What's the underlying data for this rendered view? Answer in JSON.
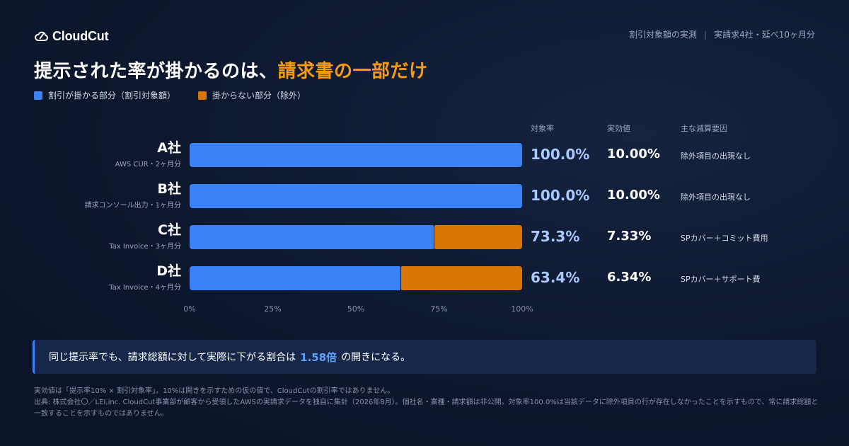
{
  "brand": {
    "name": "CloudCut"
  },
  "header": {
    "meta_left": "割引対象額の実測",
    "meta_sep": "|",
    "meta_right": "実請求4社・延べ10ヶ月分"
  },
  "title": {
    "main": "提示された率が掛かるのは、",
    "accent": "請求書の一部だけ"
  },
  "legend": {
    "covered": {
      "label": "割引が掛かる部分（割引対象額）",
      "color": "#3b82f6"
    },
    "excluded": {
      "label": "掛からない部分（除外）",
      "color": "#d97706"
    }
  },
  "columns": {
    "rate": "対象率",
    "effective": "実効値",
    "factor": "主な減算要因"
  },
  "chart_data": {
    "type": "bar",
    "orientation": "horizontal",
    "stacked": true,
    "categories": [
      "A社",
      "B社",
      "C社",
      "D社"
    ],
    "category_sources": [
      "AWS CUR・2ヶ月分",
      "請求コンソール出力・1ヶ月分",
      "Tax Invoice・3ヶ月分",
      "Tax Invoice・4ヶ月分"
    ],
    "series": [
      {
        "name": "割引が掛かる部分（割引対象額）",
        "values": [
          100.0,
          100.0,
          73.3,
          63.4
        ]
      },
      {
        "name": "掛からない部分（除外）",
        "values": [
          0.0,
          0.0,
          26.7,
          36.6
        ]
      }
    ],
    "rate_labels": [
      "100.0%",
      "100.0%",
      "73.3%",
      "63.4%"
    ],
    "effective_labels": [
      "10.00%",
      "10.00%",
      "7.33%",
      "6.34%"
    ],
    "factor_labels": [
      "除外項目の出現なし",
      "除外項目の出現なし",
      "SPカバー＋コミット費用",
      "SPカバー＋サポート費"
    ],
    "x_ticks": [
      "0%",
      "25%",
      "50%",
      "75%",
      "100%"
    ],
    "xlim": [
      0,
      100
    ],
    "grid": false,
    "legend_position": "top-left"
  },
  "callout": {
    "before": "同じ提示率でも、請求総額に対して実際に下がる割合は",
    "highlight": "1.58倍",
    "after": "の開きになる。"
  },
  "footnotes": [
    "実効値は「提示率10% × 割引対象率」。10%は開きを示すための仮の値で、CloudCutの割引率ではありません。",
    "出典: 株式会社〇／LEI,inc. CloudCut事業部が顧客から受領したAWSの実請求データを独自に集計（2026年8月）。個社名・業種・請求額は非公開。対象率100.0%は当該データに除外項目の行が存在しなかったことを示すもので、常に請求総額と一致することを示すものではありません。"
  ]
}
